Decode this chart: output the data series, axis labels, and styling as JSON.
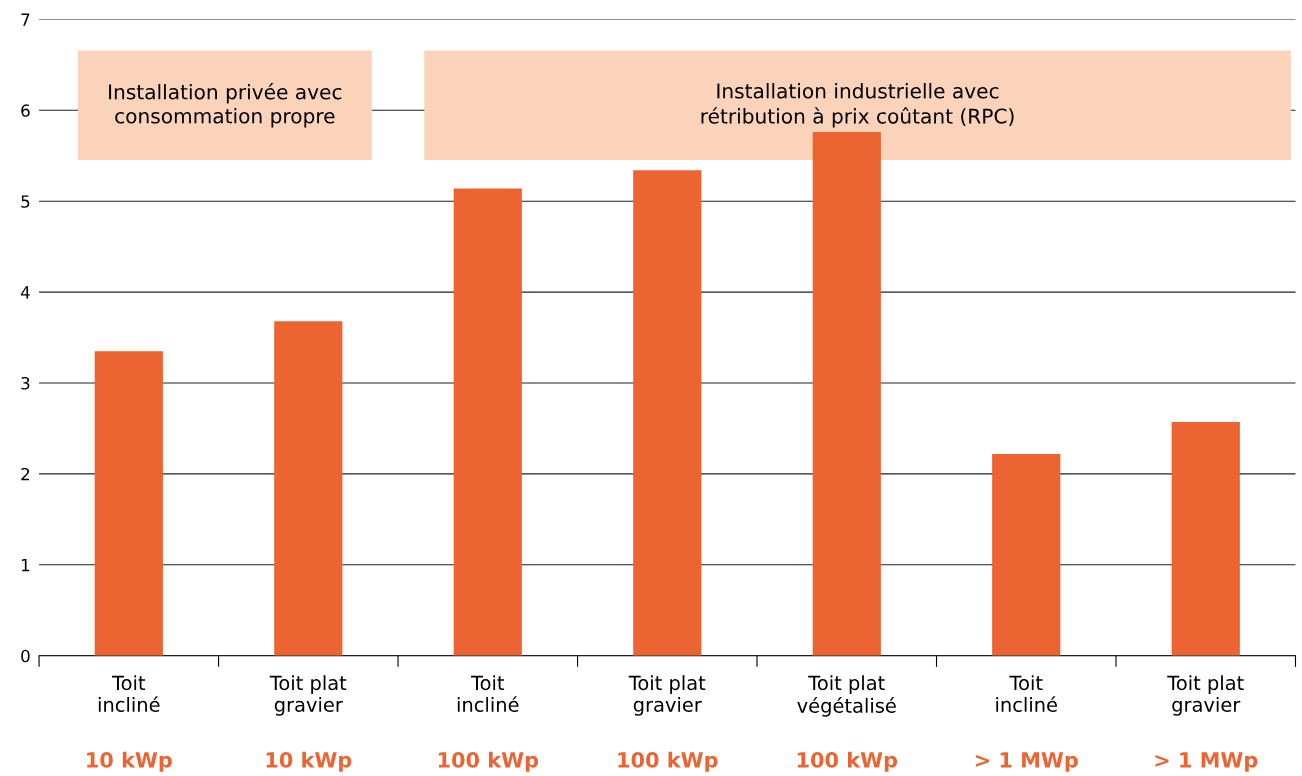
{
  "chart_data": {
    "type": "bar",
    "categories": [
      "Toit\nincliné\n10 kWp",
      "Toit plat\ngravier\n10 kWp",
      "Toit\nincliné\n100 kWp",
      "Toit plat\ngravier\n100 kWp",
      "Toit plat\nvégétalisé\n100 kWp",
      "Toit\nincliné\n> 1 MWp",
      "Toit plat\ngravier\n> 1 MWp"
    ],
    "values": [
      3.35,
      3.68,
      5.14,
      5.34,
      5.76,
      2.22,
      2.57
    ],
    "color": "#eb6431",
    "ylim": [
      0,
      7
    ],
    "yticks": [
      0,
      1,
      2,
      3,
      4,
      5,
      6,
      7
    ],
    "grid": "y",
    "annotations": [
      "Installation privée avec\nconsommation propre",
      "Installation industrielle avec\nrétribution à prix coûtant (RPC)"
    ]
  }
}
